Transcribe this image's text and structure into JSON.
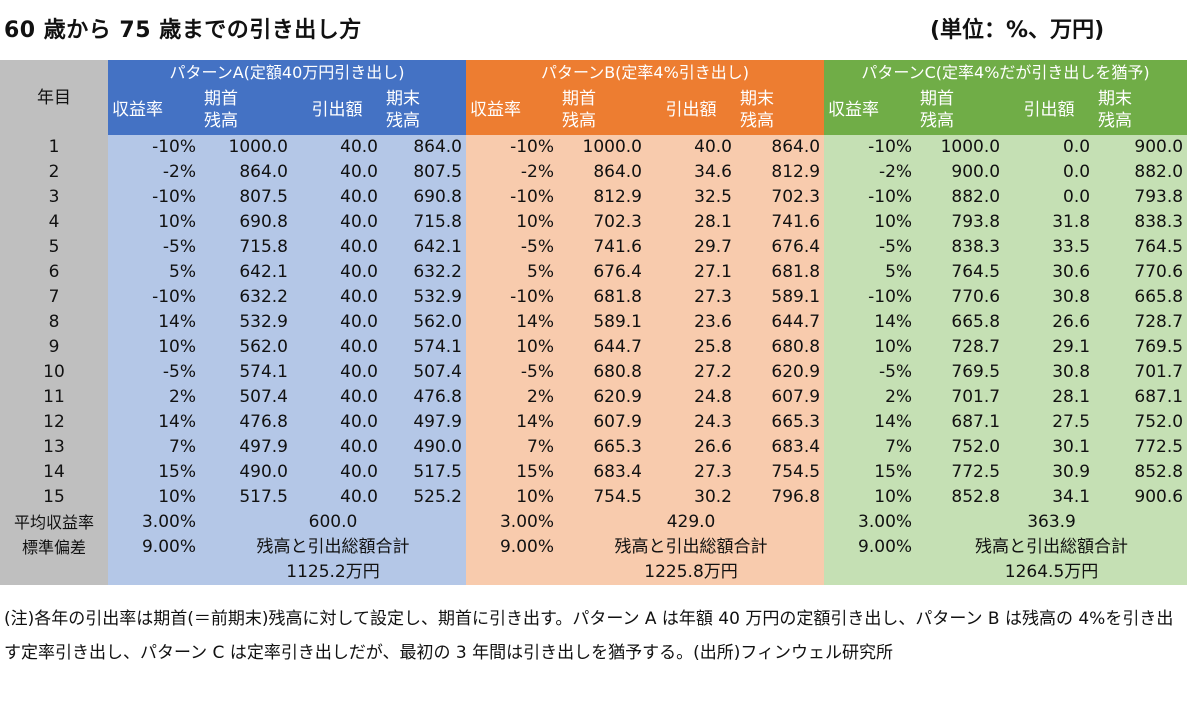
{
  "title": "60 歳から 75 歳までの引き出し方",
  "unit": "(単位：%、万円)",
  "table": {
    "year_header": "年目",
    "patterns": [
      {
        "name": "パターンA(定額40万円引き出し)"
      },
      {
        "name": "パターンB(定率4%引き出し)"
      },
      {
        "name": "パターンC(定率4%だが引き出しを猶予)"
      }
    ],
    "sub_headers": {
      "return": "収益率",
      "start": "期首\n残高",
      "withdraw": "引出額",
      "end": "期末\n残高"
    },
    "rows": [
      {
        "year": "1",
        "a": [
          "-10%",
          "1000.0",
          "40.0",
          "864.0"
        ],
        "b": [
          "-10%",
          "1000.0",
          "40.0",
          "864.0"
        ],
        "c": [
          "-10%",
          "1000.0",
          "0.0",
          "900.0"
        ]
      },
      {
        "year": "2",
        "a": [
          "-2%",
          "864.0",
          "40.0",
          "807.5"
        ],
        "b": [
          "-2%",
          "864.0",
          "34.6",
          "812.9"
        ],
        "c": [
          "-2%",
          "900.0",
          "0.0",
          "882.0"
        ]
      },
      {
        "year": "3",
        "a": [
          "-10%",
          "807.5",
          "40.0",
          "690.8"
        ],
        "b": [
          "-10%",
          "812.9",
          "32.5",
          "702.3"
        ],
        "c": [
          "-10%",
          "882.0",
          "0.0",
          "793.8"
        ]
      },
      {
        "year": "4",
        "a": [
          "10%",
          "690.8",
          "40.0",
          "715.8"
        ],
        "b": [
          "10%",
          "702.3",
          "28.1",
          "741.6"
        ],
        "c": [
          "10%",
          "793.8",
          "31.8",
          "838.3"
        ]
      },
      {
        "year": "5",
        "a": [
          "-5%",
          "715.8",
          "40.0",
          "642.1"
        ],
        "b": [
          "-5%",
          "741.6",
          "29.7",
          "676.4"
        ],
        "c": [
          "-5%",
          "838.3",
          "33.5",
          "764.5"
        ]
      },
      {
        "year": "6",
        "a": [
          "5%",
          "642.1",
          "40.0",
          "632.2"
        ],
        "b": [
          "5%",
          "676.4",
          "27.1",
          "681.8"
        ],
        "c": [
          "5%",
          "764.5",
          "30.6",
          "770.6"
        ]
      },
      {
        "year": "7",
        "a": [
          "-10%",
          "632.2",
          "40.0",
          "532.9"
        ],
        "b": [
          "-10%",
          "681.8",
          "27.3",
          "589.1"
        ],
        "c": [
          "-10%",
          "770.6",
          "30.8",
          "665.8"
        ]
      },
      {
        "year": "8",
        "a": [
          "14%",
          "532.9",
          "40.0",
          "562.0"
        ],
        "b": [
          "14%",
          "589.1",
          "23.6",
          "644.7"
        ],
        "c": [
          "14%",
          "665.8",
          "26.6",
          "728.7"
        ]
      },
      {
        "year": "9",
        "a": [
          "10%",
          "562.0",
          "40.0",
          "574.1"
        ],
        "b": [
          "10%",
          "644.7",
          "25.8",
          "680.8"
        ],
        "c": [
          "10%",
          "728.7",
          "29.1",
          "769.5"
        ]
      },
      {
        "year": "10",
        "a": [
          "-5%",
          "574.1",
          "40.0",
          "507.4"
        ],
        "b": [
          "-5%",
          "680.8",
          "27.2",
          "620.9"
        ],
        "c": [
          "-5%",
          "769.5",
          "30.8",
          "701.7"
        ]
      },
      {
        "year": "11",
        "a": [
          "2%",
          "507.4",
          "40.0",
          "476.8"
        ],
        "b": [
          "2%",
          "620.9",
          "24.8",
          "607.9"
        ],
        "c": [
          "2%",
          "701.7",
          "28.1",
          "687.1"
        ]
      },
      {
        "year": "12",
        "a": [
          "14%",
          "476.8",
          "40.0",
          "497.9"
        ],
        "b": [
          "14%",
          "607.9",
          "24.3",
          "665.3"
        ],
        "c": [
          "14%",
          "687.1",
          "27.5",
          "752.0"
        ]
      },
      {
        "year": "13",
        "a": [
          "7%",
          "497.9",
          "40.0",
          "490.0"
        ],
        "b": [
          "7%",
          "665.3",
          "26.6",
          "683.4"
        ],
        "c": [
          "7%",
          "752.0",
          "30.1",
          "772.5"
        ]
      },
      {
        "year": "14",
        "a": [
          "15%",
          "490.0",
          "40.0",
          "517.5"
        ],
        "b": [
          "15%",
          "683.4",
          "27.3",
          "754.5"
        ],
        "c": [
          "15%",
          "772.5",
          "30.9",
          "852.8"
        ]
      },
      {
        "year": "15",
        "a": [
          "10%",
          "517.5",
          "40.0",
          "525.2"
        ],
        "b": [
          "10%",
          "754.5",
          "30.2",
          "796.8"
        ],
        "c": [
          "10%",
          "852.8",
          "34.1",
          "900.6"
        ]
      }
    ],
    "footer": {
      "avg_label": "平均収益率",
      "std_label": "標準偏差",
      "a": {
        "avg": "3.00%",
        "withdraw_total": "600.0",
        "std": "9.00%",
        "total_label": "残高と引出総額合計",
        "total": "1125.2万円"
      },
      "b": {
        "avg": "3.00%",
        "withdraw_total": "429.0",
        "std": "9.00%",
        "total_label": "残高と引出総額合計",
        "total": "1225.8万円"
      },
      "c": {
        "avg": "3.00%",
        "withdraw_total": "363.9",
        "std": "9.00%",
        "total_label": "残高と引出総額合計",
        "total": "1264.5万円"
      }
    }
  },
  "note": "(注)各年の引出率は期首(＝前期末)残高に対して設定し、期首に引き出す。パターン A は年額 40 万円の定額引き出し、パターン B は残高の 4%を引き出す定率引き出し、パターン C は定率引き出しだが、最初の 3 年間は引き出しを猶予する。(出所)フィンウェル研究所",
  "colors": {
    "header_a": "#4472c4",
    "header_b": "#ed7d31",
    "header_c": "#70ad47",
    "body_a": "#b4c7e7",
    "body_b": "#f8cbad",
    "body_c": "#c5e0b4",
    "gray": "#bfbfbf"
  }
}
